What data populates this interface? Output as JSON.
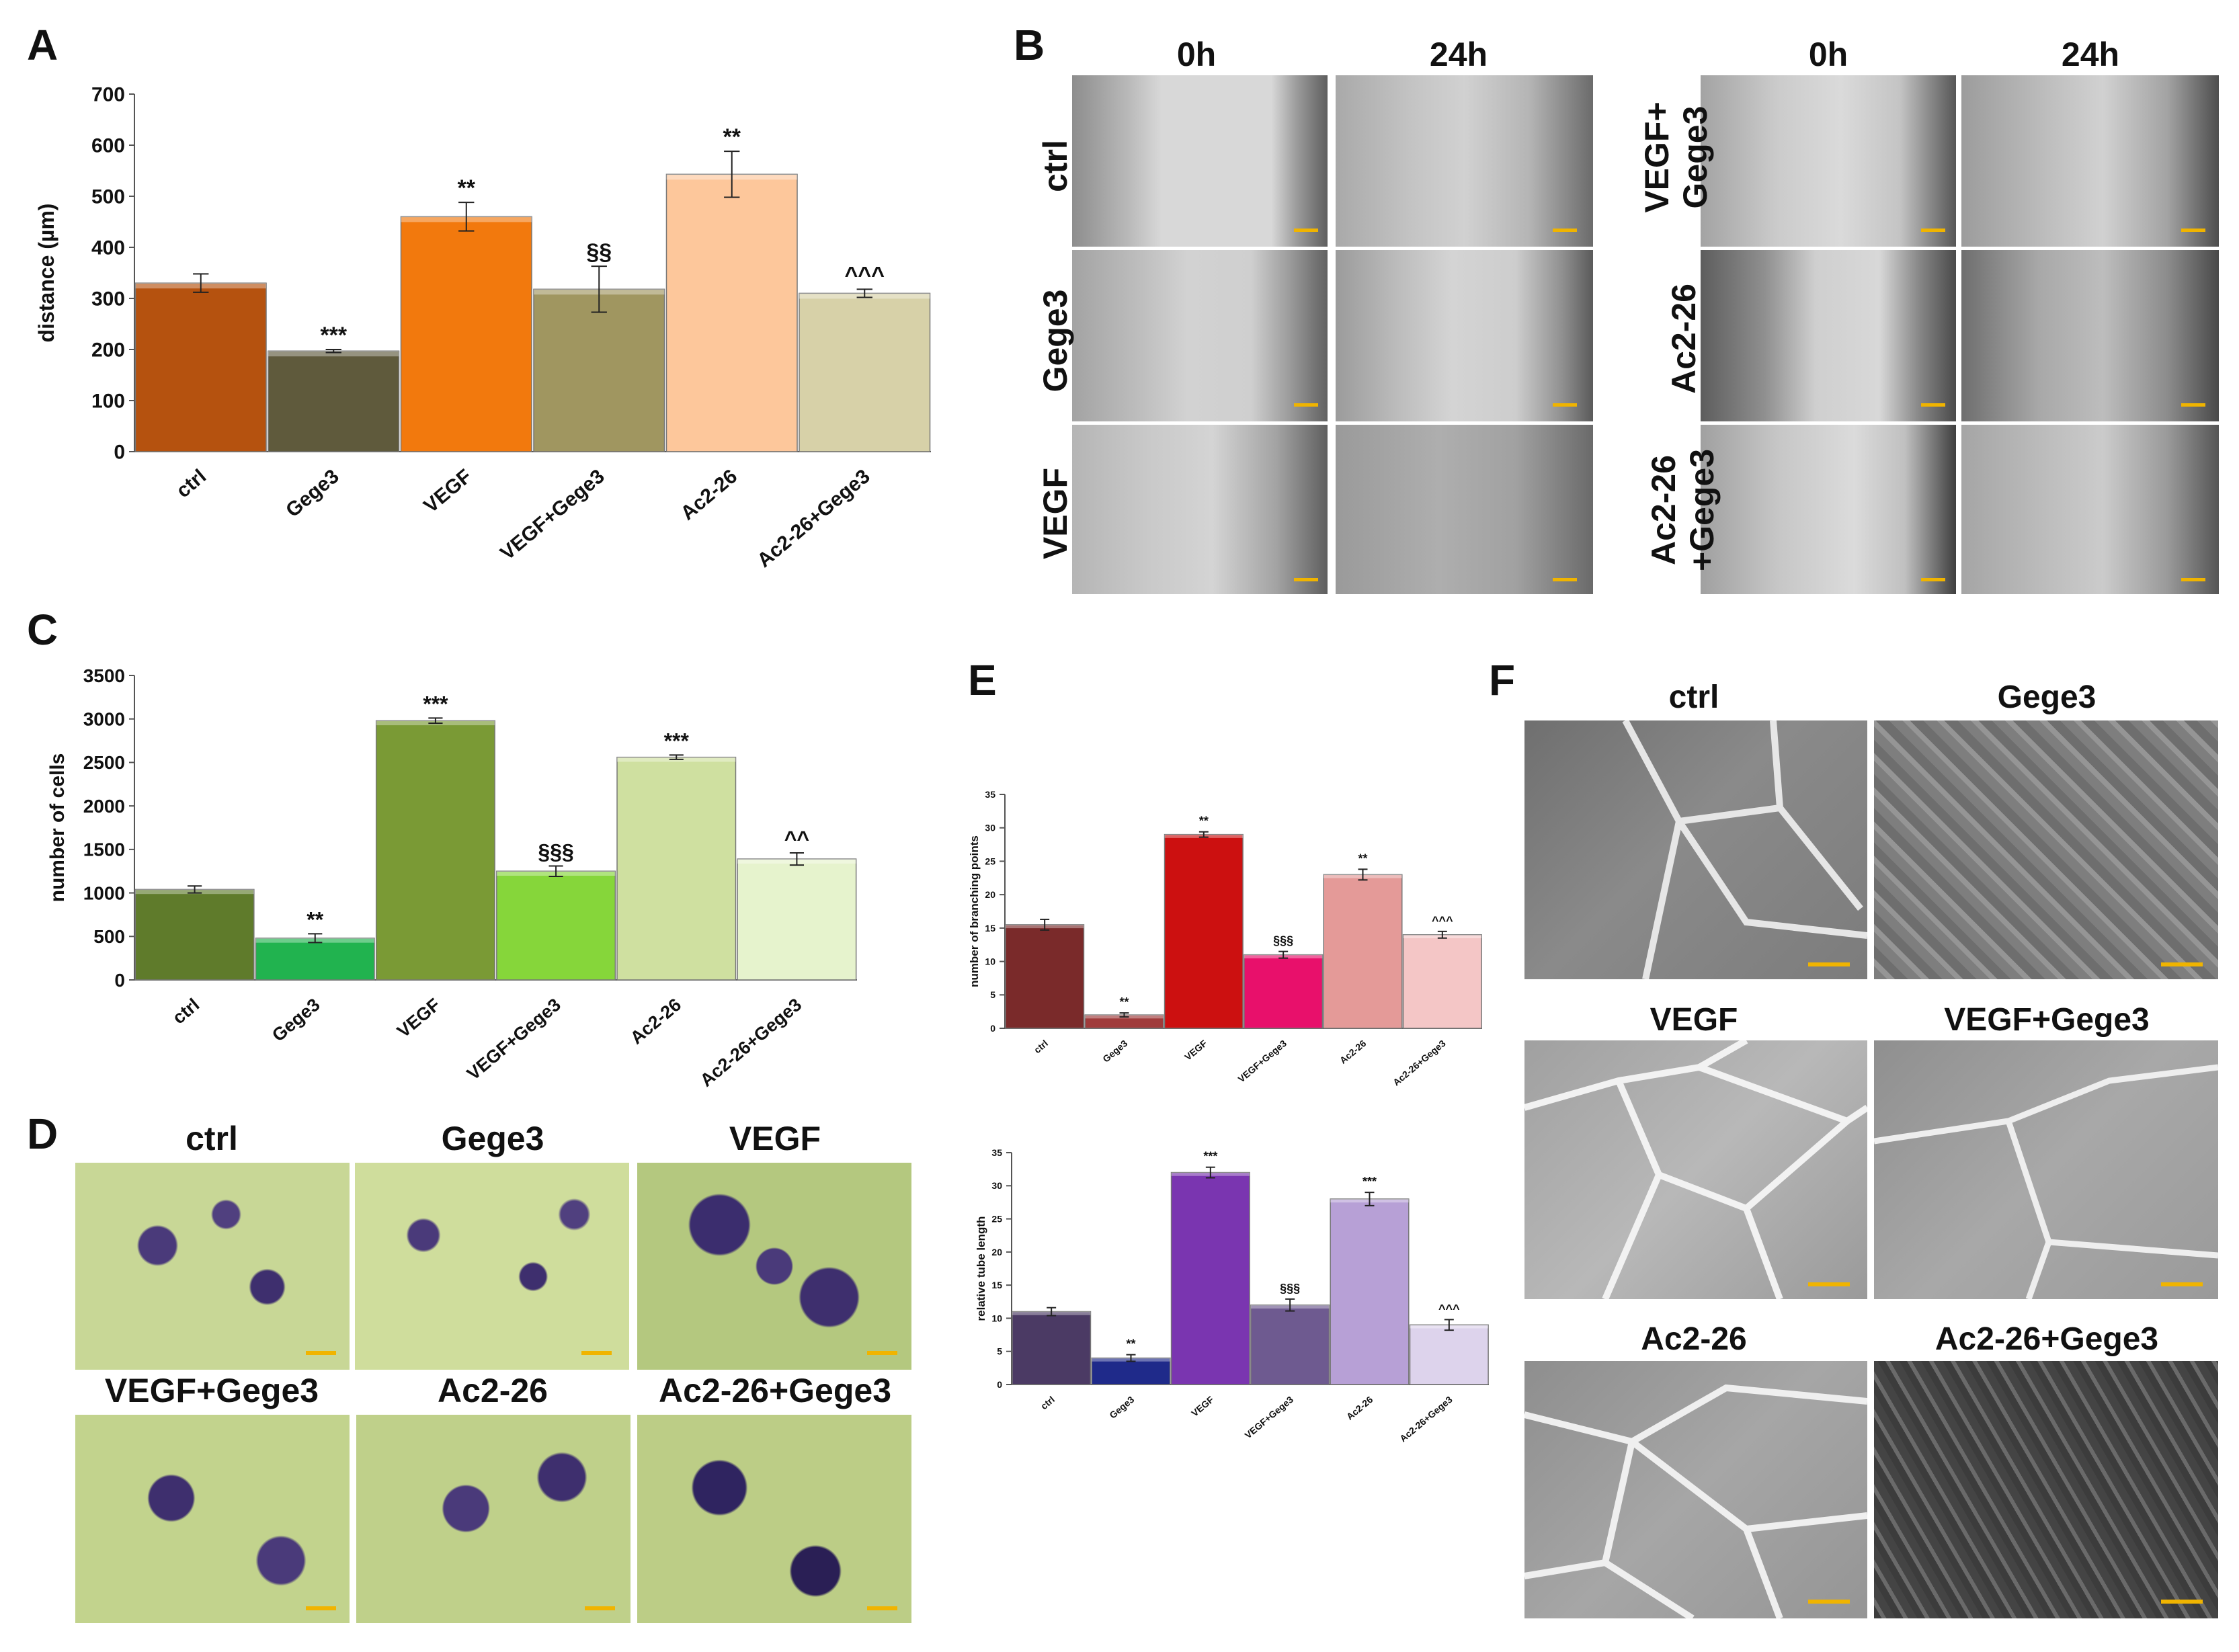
{
  "panels": {
    "A": "A",
    "B": "B",
    "C": "C",
    "D": "D",
    "E": "E",
    "F": "F"
  },
  "chart_data": [
    {
      "id": "A",
      "type": "bar",
      "categories": [
        "ctrl",
        "Gege3",
        "VEGF",
        "VEGF+Gege3",
        "Ac2-26",
        "Ac2-26+Gege3"
      ],
      "values": [
        330,
        197,
        460,
        318,
        543,
        310
      ],
      "errors": [
        18,
        3,
        28,
        45,
        45,
        8
      ],
      "annotations": [
        "",
        "***",
        "**",
        "§§",
        "**",
        "^^^"
      ],
      "colors": [
        "#b5520f",
        "#5f5a3c",
        "#f2790d",
        "#a09660",
        "#fdc79b",
        "#d7d1a8"
      ],
      "ylabel": "distance (µm)",
      "xlabel": "",
      "ylim": [
        0,
        700
      ],
      "yticks": [
        "0",
        "100",
        "200",
        "300",
        "400",
        "500",
        "600",
        "700"
      ],
      "grid": false
    },
    {
      "id": "C",
      "type": "bar",
      "categories": [
        "ctrl",
        "Gege3",
        "VEGF",
        "VEGF+Gege3",
        "Ac2-26",
        "Ac2-26+Gege3"
      ],
      "values": [
        1040,
        480,
        2980,
        1250,
        2560,
        1390
      ],
      "errors": [
        40,
        50,
        30,
        60,
        25,
        70
      ],
      "annotations": [
        "",
        "**",
        "***",
        "§§§",
        "***",
        "^^"
      ],
      "colors": [
        "#5f7b2b",
        "#21b34f",
        "#7a9a35",
        "#86d63a",
        "#cfe0a0",
        "#e6f3cd"
      ],
      "ylabel": "number of cells",
      "xlabel": "",
      "ylim": [
        0,
        3500
      ],
      "yticks": [
        "0",
        "500",
        "1000",
        "1500",
        "2000",
        "2500",
        "3000",
        "3500"
      ],
      "grid": false
    },
    {
      "id": "E1",
      "type": "bar",
      "categories": [
        "ctrl",
        "Gege3",
        "VEGF",
        "VEGF+Gege3",
        "Ac2-26",
        "Ac2-26+Gege3"
      ],
      "values": [
        15.5,
        2,
        29,
        11,
        23,
        14
      ],
      "errors": [
        0.8,
        0.3,
        0.4,
        0.5,
        0.8,
        0.5
      ],
      "annotations": [
        "",
        "**",
        "**",
        "§§§",
        "**",
        "^^^"
      ],
      "colors": [
        "#7a2a2a",
        "#a03b3b",
        "#cc1010",
        "#e8106b",
        "#e49a98",
        "#f4c6c6"
      ],
      "ylabel": "number of branching points",
      "xlabel": "",
      "ylim": [
        0,
        35
      ],
      "yticks": [
        "0",
        "5",
        "10",
        "15",
        "20",
        "25",
        "30",
        "35"
      ],
      "grid": false
    },
    {
      "id": "E2",
      "type": "bar",
      "categories": [
        "ctrl",
        "Gege3",
        "VEGF",
        "VEGF+Gege3",
        "Ac2-26",
        "Ac2-26+Gege3"
      ],
      "values": [
        11,
        4,
        32,
        12,
        28,
        9
      ],
      "errors": [
        0.6,
        0.5,
        0.8,
        0.9,
        1.0,
        0.8
      ],
      "annotations": [
        "",
        "**",
        "***",
        "§§§",
        "***",
        "^^^"
      ],
      "colors": [
        "#4b3a64",
        "#1f2a8a",
        "#7a35b0",
        "#6e5a90",
        "#b7a0d6",
        "#ddd3ec"
      ],
      "ylabel": "relative tube length",
      "xlabel": "",
      "ylim": [
        0,
        35
      ],
      "yticks": [
        "0",
        "5",
        "10",
        "15",
        "20",
        "25",
        "30",
        "35"
      ],
      "grid": false
    }
  ],
  "panelB": {
    "col_labels_left": [
      "0h",
      "24h"
    ],
    "col_labels_right": [
      "0h",
      "24h"
    ],
    "row_labels_left": [
      "ctrl",
      "Gege3",
      "VEGF"
    ],
    "row_labels_right_vegf": [
      "VEGF+",
      "Gege3"
    ],
    "row_labels_right_ac": "Ac2-26",
    "row_labels_right_acg": [
      "Ac2-26",
      "+Gege3"
    ]
  },
  "panelD": {
    "labels": [
      "ctrl",
      "Gege3",
      "VEGF",
      "VEGF+Gege3",
      "Ac2-26",
      "Ac2-26+Gege3"
    ]
  },
  "panelF": {
    "labels": [
      "ctrl",
      "Gege3",
      "VEGF",
      "VEGF+Gege3",
      "Ac2-26",
      "Ac2-26+Gege3"
    ]
  },
  "colors": {
    "scalebar": "#f0b400"
  }
}
